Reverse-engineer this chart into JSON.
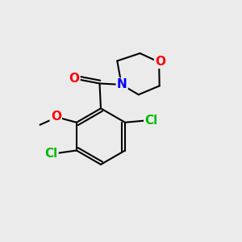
{
  "background_color": "#ebebeb",
  "bond_color": "#000000",
  "bond_width": 1.5,
  "atom_colors": {
    "O": "#ff0000",
    "N": "#0000ff",
    "Cl": "#00bb00",
    "C": "#000000"
  },
  "font_size_atom": 11,
  "fig_width": 3.0,
  "fig_height": 3.0,
  "dpi": 100
}
